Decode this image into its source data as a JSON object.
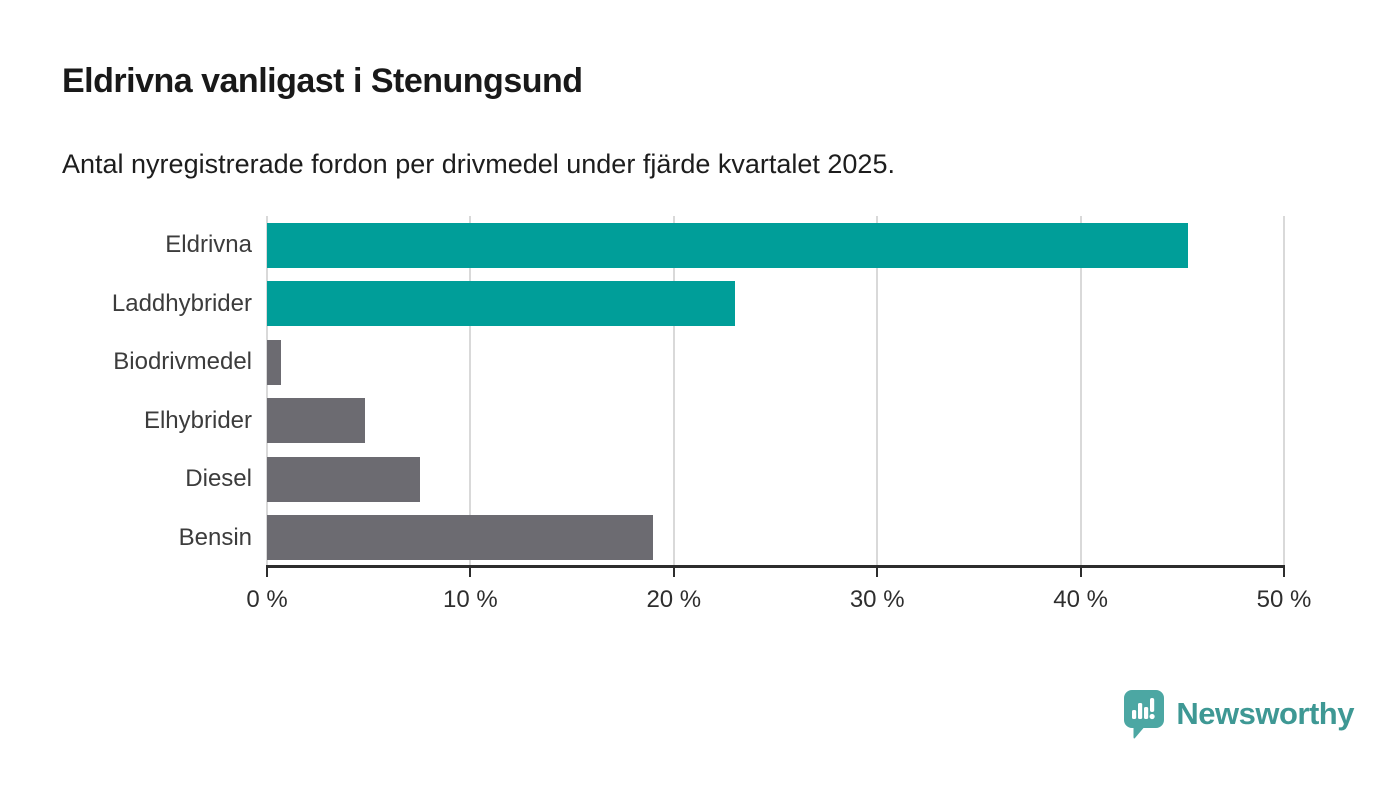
{
  "header": {
    "title": "Eldrivna vanligast i Stenungsund",
    "subtitle": "Antal nyregistrerade fordon per drivmedel under fjärde kvartalet 2025."
  },
  "chart_data": {
    "type": "bar",
    "orientation": "horizontal",
    "title": "Eldrivna vanligast i Stenungsund",
    "subtitle": "Antal nyregistrerade fordon per drivmedel under fjärde kvartalet 2025.",
    "categories": [
      "Eldrivna",
      "Laddhybrider",
      "Biodrivmedel",
      "Elhybrider",
      "Diesel",
      "Bensin"
    ],
    "values": [
      45.3,
      23,
      0.7,
      4.8,
      7.5,
      19
    ],
    "unit": "%",
    "bar_colors": [
      "#009e99",
      "#009e99",
      "#6c6b71",
      "#6c6b71",
      "#6c6b71",
      "#6c6b71"
    ],
    "xlim": [
      0,
      50
    ],
    "x_ticks": [
      0,
      10,
      20,
      30,
      40,
      50
    ],
    "x_tick_labels": [
      "0 %",
      "10 %",
      "20 %",
      "30 %",
      "40 %",
      "50 %"
    ],
    "grid": "vertical-light",
    "legend": "none"
  },
  "colors": {
    "highlight": "#009e99",
    "neutral": "#6c6b71",
    "axis": "#2d2d2d",
    "gridline": "#d9d9d9"
  },
  "branding": {
    "wordmark": "Newsworthy",
    "wordmark_color": "#3e9894",
    "icon_color": "#4ca7a3",
    "icon_name": "newsworthy-speech-bubble-chart-icon"
  }
}
